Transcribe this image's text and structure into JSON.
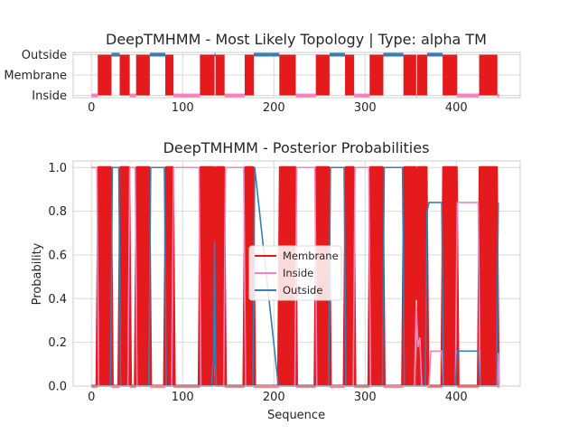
{
  "chart_data": [
    {
      "type": "step",
      "title": "DeepTMHMM - Most Likely Topology | Type: alpha TM",
      "xlabel": "",
      "ylabel": "",
      "xlim": [
        -20,
        470
      ],
      "x_ticks": [
        0,
        100,
        200,
        300,
        400
      ],
      "y_categories": [
        "Inside",
        "Membrane",
        "Outside"
      ],
      "grid": true,
      "colors": {
        "Inside": "#f781bf",
        "Membrane": "#e41a1c",
        "Outside": "#377eb8"
      },
      "segments": [
        {
          "state": "Inside",
          "start": 0,
          "end": 7
        },
        {
          "state": "Membrane",
          "start": 7,
          "end": 22
        },
        {
          "state": "Outside",
          "start": 22,
          "end": 31
        },
        {
          "state": "Membrane",
          "start": 31,
          "end": 42
        },
        {
          "state": "Inside",
          "start": 42,
          "end": 49
        },
        {
          "state": "Membrane",
          "start": 49,
          "end": 64
        },
        {
          "state": "Outside",
          "start": 64,
          "end": 81
        },
        {
          "state": "Membrane",
          "start": 81,
          "end": 90
        },
        {
          "state": "Inside",
          "start": 90,
          "end": 119
        },
        {
          "state": "Membrane",
          "start": 119,
          "end": 135
        },
        {
          "state": "Outside",
          "start": 135,
          "end": 136
        },
        {
          "state": "Membrane",
          "start": 136,
          "end": 146
        },
        {
          "state": "Inside",
          "start": 146,
          "end": 168
        },
        {
          "state": "Membrane",
          "start": 168,
          "end": 178
        },
        {
          "state": "Outside",
          "start": 178,
          "end": 206
        },
        {
          "state": "Membrane",
          "start": 206,
          "end": 224
        },
        {
          "state": "Inside",
          "start": 224,
          "end": 246
        },
        {
          "state": "Membrane",
          "start": 246,
          "end": 261
        },
        {
          "state": "Outside",
          "start": 261,
          "end": 278
        },
        {
          "state": "Membrane",
          "start": 278,
          "end": 288
        },
        {
          "state": "Inside",
          "start": 288,
          "end": 305
        },
        {
          "state": "Membrane",
          "start": 305,
          "end": 320
        },
        {
          "state": "Outside",
          "start": 320,
          "end": 342
        },
        {
          "state": "Membrane",
          "start": 342,
          "end": 356
        },
        {
          "state": "Inside",
          "start": 356,
          "end": 357
        },
        {
          "state": "Membrane",
          "start": 357,
          "end": 368
        },
        {
          "state": "Outside",
          "start": 368,
          "end": 385
        },
        {
          "state": "Membrane",
          "start": 385,
          "end": 401
        },
        {
          "state": "Inside",
          "start": 401,
          "end": 425
        },
        {
          "state": "Membrane",
          "start": 425,
          "end": 445
        },
        {
          "state": "Inside",
          "start": 445,
          "end": 447
        }
      ]
    },
    {
      "type": "line",
      "title": "DeepTMHMM - Posterior Probabilities",
      "xlabel": "Sequence",
      "ylabel": "Probability",
      "xlim": [
        -20,
        470
      ],
      "ylim": [
        0,
        1.03
      ],
      "x_ticks": [
        0,
        100,
        200,
        300,
        400
      ],
      "y_ticks": [
        0.0,
        0.2,
        0.4,
        0.6,
        0.8,
        1.0
      ],
      "y_tick_labels": [
        "0.0",
        "0.2",
        "0.4",
        "0.6",
        "0.8",
        "1.0"
      ],
      "grid": true,
      "legend_position": "center",
      "series": [
        {
          "name": "Membrane",
          "color": "#e41a1c",
          "style": "thick-oscillating",
          "points": [
            [
              0,
              0
            ],
            [
              6,
              0
            ],
            [
              8,
              1
            ],
            [
              21,
              1
            ],
            [
              23,
              0
            ],
            [
              30,
              0
            ],
            [
              32,
              1
            ],
            [
              41,
              1
            ],
            [
              43,
              0
            ],
            [
              48,
              0
            ],
            [
              50,
              1
            ],
            [
              63,
              1
            ],
            [
              65,
              0
            ],
            [
              80,
              0
            ],
            [
              82,
              1
            ],
            [
              89,
              1
            ],
            [
              91,
              0
            ],
            [
              118,
              0
            ],
            [
              120,
              1
            ],
            [
              134,
              1
            ],
            [
              135,
              0.1
            ],
            [
              137,
              1
            ],
            [
              145,
              1
            ],
            [
              147,
              0
            ],
            [
              167,
              0
            ],
            [
              169,
              1
            ],
            [
              177,
              1
            ],
            [
              179,
              0
            ],
            [
              205,
              0
            ],
            [
              207,
              1
            ],
            [
              223,
              1
            ],
            [
              225,
              0
            ],
            [
              245,
              0
            ],
            [
              247,
              1
            ],
            [
              260,
              1
            ],
            [
              262,
              0
            ],
            [
              277,
              0
            ],
            [
              279,
              1
            ],
            [
              287,
              1
            ],
            [
              289,
              0
            ],
            [
              304,
              0
            ],
            [
              306,
              1
            ],
            [
              319,
              1
            ],
            [
              321,
              0
            ],
            [
              341,
              0
            ],
            [
              343,
              1
            ],
            [
              355,
              1
            ],
            [
              356,
              0.4
            ],
            [
              358,
              1
            ],
            [
              367,
              1
            ],
            [
              369,
              0
            ],
            [
              384,
              0
            ],
            [
              386,
              1
            ],
            [
              400,
              1
            ],
            [
              402,
              0
            ],
            [
              424,
              0
            ],
            [
              426,
              1
            ],
            [
              444,
              1
            ],
            [
              446,
              0
            ],
            [
              447,
              0
            ]
          ]
        },
        {
          "name": "Inside",
          "color": "#f781bf",
          "points": [
            [
              0,
              1
            ],
            [
              6,
              1
            ],
            [
              8,
              0
            ],
            [
              40,
              0
            ],
            [
              42,
              1
            ],
            [
              48,
              1
            ],
            [
              50,
              0
            ],
            [
              88,
              0
            ],
            [
              90,
              1
            ],
            [
              118,
              1
            ],
            [
              120,
              0
            ],
            [
              145,
              0
            ],
            [
              147,
              1
            ],
            [
              167,
              1
            ],
            [
              169,
              0
            ],
            [
              223,
              0
            ],
            [
              225,
              1
            ],
            [
              245,
              1
            ],
            [
              247,
              0
            ],
            [
              287,
              0
            ],
            [
              289,
              1
            ],
            [
              304,
              1
            ],
            [
              306,
              0
            ],
            [
              354,
              0
            ],
            [
              356,
              0.36
            ],
            [
              358,
              0.18
            ],
            [
              360,
              0.22
            ],
            [
              362,
              0
            ],
            [
              370,
              0
            ],
            [
              372,
              0.16
            ],
            [
              384,
              0.16
            ],
            [
              386,
              0
            ],
            [
              399,
              0
            ],
            [
              401,
              0.84
            ],
            [
              424,
              0.84
            ],
            [
              426,
              0
            ],
            [
              445,
              0
            ],
            [
              446,
              0.15
            ],
            [
              447,
              0
            ]
          ]
        },
        {
          "name": "Outside",
          "color": "#377eb8",
          "points": [
            [
              0,
              0
            ],
            [
              21,
              0
            ],
            [
              23,
              1
            ],
            [
              30,
              1
            ],
            [
              32,
              0
            ],
            [
              63,
              0
            ],
            [
              65,
              1
            ],
            [
              80,
              1
            ],
            [
              82,
              0
            ],
            [
              132,
              0
            ],
            [
              133,
              0.1
            ],
            [
              134,
              0.1
            ],
            [
              135,
              0.66
            ],
            [
              136,
              0.1
            ],
            [
              137,
              0
            ],
            [
              177,
              0
            ],
            [
              179,
              1
            ],
            [
              205,
              0
            ],
            [
              260,
              0
            ],
            [
              262,
              1
            ],
            [
              277,
              1
            ],
            [
              279,
              0
            ],
            [
              319,
              0
            ],
            [
              321,
              1
            ],
            [
              341,
              1
            ],
            [
              343,
              0
            ],
            [
              366,
              0
            ],
            [
              368,
              0.8
            ],
            [
              370,
              0.84
            ],
            [
              384,
              0.84
            ],
            [
              386,
              0
            ],
            [
              399,
              0
            ],
            [
              401,
              0.16
            ],
            [
              424,
              0.16
            ],
            [
              426,
              0
            ],
            [
              444,
              0
            ],
            [
              446,
              0.84
            ]
          ]
        }
      ]
    }
  ]
}
